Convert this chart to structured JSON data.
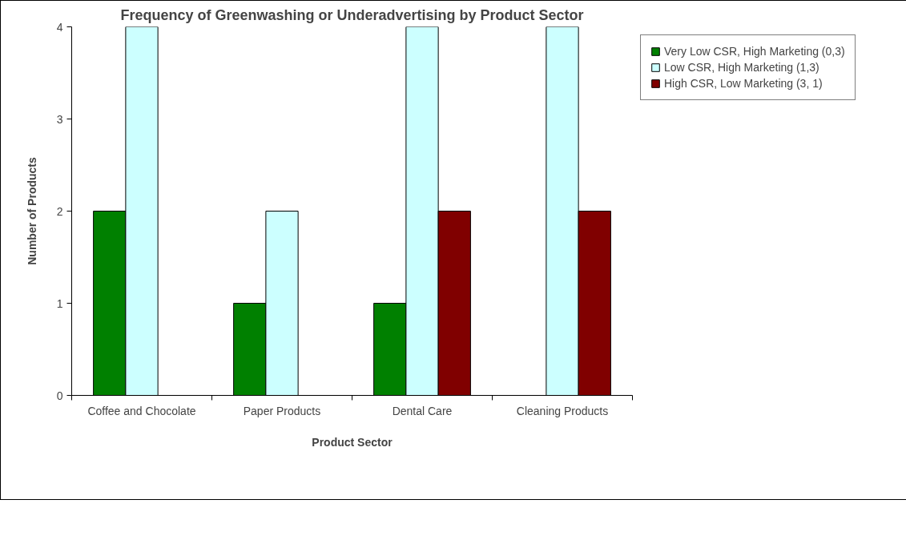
{
  "chart_data": {
    "type": "bar",
    "title": "Frequency of Greenwashing or Underadvertising by Product Sector",
    "xlabel": "Product Sector",
    "ylabel": "Number of Products",
    "categories": [
      "Coffee and Chocolate",
      "Paper Products",
      "Dental Care",
      "Cleaning Products"
    ],
    "series": [
      {
        "name": "Very Low CSR, High Marketing (0,3)",
        "color": "#008000",
        "values": [
          2,
          1,
          1,
          null
        ]
      },
      {
        "name": "Low CSR, High Marketing (1,3)",
        "color": "#ccffff",
        "values": [
          4,
          2,
          4,
          4
        ]
      },
      {
        "name": "High CSR, Low Marketing (3, 1)",
        "color": "#800000",
        "values": [
          null,
          null,
          2,
          2
        ]
      }
    ],
    "ylim": [
      0,
      4
    ],
    "yticks": [
      0,
      1,
      2,
      3,
      4
    ],
    "grid": false,
    "legend": "right"
  }
}
